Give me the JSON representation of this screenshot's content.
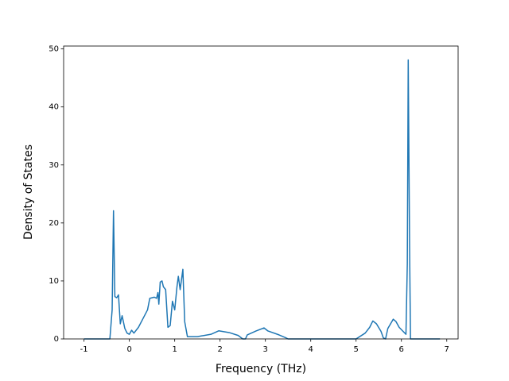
{
  "chart_data": {
    "type": "line",
    "x_label": "Frequency (THz)",
    "y_label": "Density of States",
    "xlim": [
      -1.45,
      7.25
    ],
    "ylim": [
      0,
      50.5
    ],
    "xticks": [
      -1,
      0,
      1,
      2,
      3,
      4,
      5,
      6,
      7
    ],
    "yticks": [
      0,
      10,
      20,
      30,
      40,
      50
    ],
    "series": [
      {
        "color": "#1f77b4",
        "x": [
          -1.0,
          -0.43,
          -0.38,
          -0.35,
          -0.32,
          -0.28,
          -0.24,
          -0.2,
          -0.16,
          -0.1,
          -0.05,
          0.0,
          0.05,
          0.1,
          0.2,
          0.3,
          0.4,
          0.45,
          0.55,
          0.6,
          0.63,
          0.65,
          0.68,
          0.72,
          0.75,
          0.8,
          0.85,
          0.9,
          0.95,
          1.0,
          1.05,
          1.08,
          1.12,
          1.18,
          1.22,
          1.28,
          1.5,
          1.8,
          1.97,
          2.2,
          2.4,
          2.5,
          2.56,
          2.6,
          2.8,
          2.97,
          3.05,
          3.3,
          3.45,
          3.5,
          5.0,
          5.2,
          5.3,
          5.37,
          5.45,
          5.55,
          5.6,
          5.65,
          5.7,
          5.82,
          5.88,
          5.95,
          6.05,
          6.1,
          6.13,
          6.15,
          6.18,
          6.2,
          6.85
        ],
        "values": [
          0,
          0,
          5,
          22.1,
          7.3,
          7.1,
          7.6,
          2.6,
          4,
          1.8,
          1,
          0.8,
          1.5,
          1,
          2,
          3.5,
          5,
          7,
          7.2,
          7,
          8,
          6,
          9.8,
          10,
          9,
          8.5,
          2,
          2.3,
          6.5,
          5,
          9,
          10.8,
          8.5,
          12,
          3,
          0.4,
          0.4,
          0.8,
          1.4,
          1.1,
          0.6,
          0,
          0,
          0.7,
          1.4,
          1.9,
          1.4,
          0.7,
          0.2,
          0,
          0,
          1,
          2,
          3.1,
          2.6,
          1.3,
          0.2,
          0,
          1.8,
          3.4,
          3,
          2,
          1.2,
          0.8,
          13,
          48.1,
          16,
          0,
          0
        ]
      }
    ]
  }
}
